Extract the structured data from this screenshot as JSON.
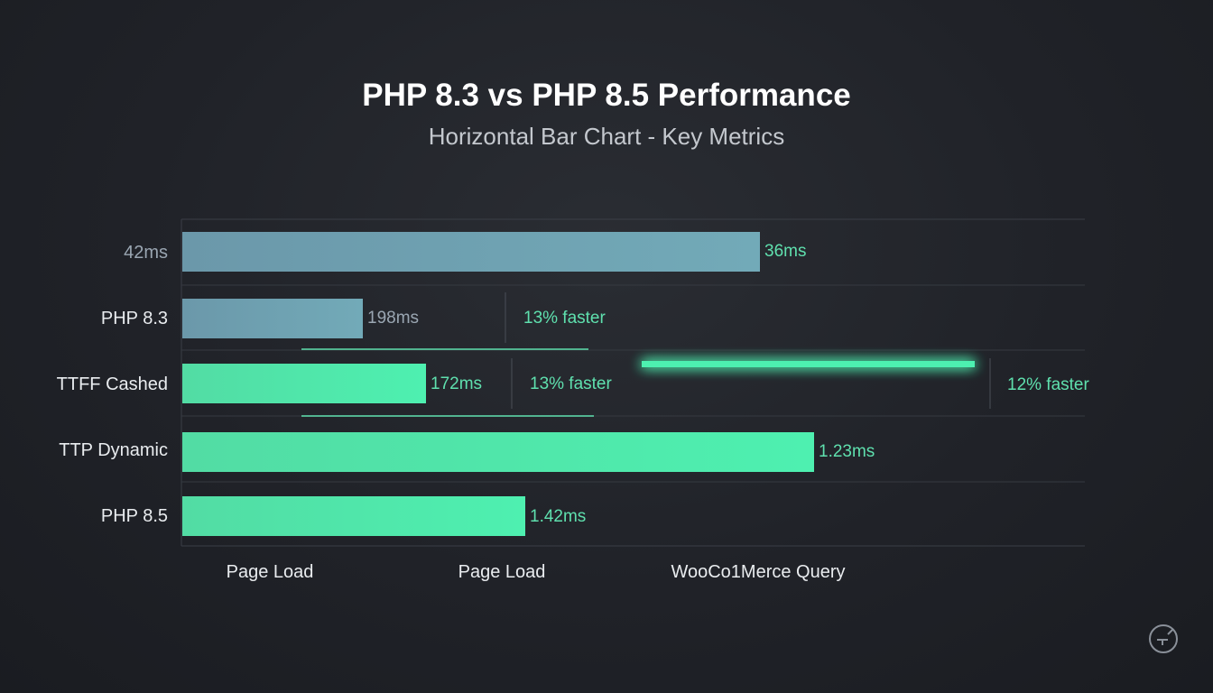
{
  "title": "PHP 8.3 vs PHP 8.5 Performance",
  "subtitle": "Horizontal Bar Chart - Key Metrics",
  "colors": {
    "background": "#202228",
    "bar_php83": "#6fa2b4",
    "bar_php85": "#4ee8aa",
    "accent_green": "#5fe0ae",
    "label_text": "#e9ecef",
    "muted_text": "#9aa6b2",
    "grid": "#3a3e46"
  },
  "chart_data": {
    "type": "bar",
    "orientation": "horizontal",
    "title": "PHP 8.3 vs PHP 8.5 Performance",
    "subtitle": "Horizontal Bar Chart - Key Metrics",
    "categories": [
      "42ms",
      "PHP 8.3",
      "TTFF Cashed",
      "TTP Dynamic",
      "PHP 8.5"
    ],
    "values": [
      64,
      20,
      27,
      70,
      38
    ],
    "value_labels": [
      "36ms",
      "198ms",
      "172ms",
      "1.23ms",
      "1.42ms"
    ],
    "bar_colors": [
      "#6fa2b4",
      "#6fa2b4",
      "#4ee8aa",
      "#4ee8aa",
      "#4ee8aa"
    ],
    "xlim": [
      0,
      100
    ],
    "annotations": [
      "13% faster",
      "13% faster",
      "12% faster"
    ],
    "x_group_labels": [
      "Page Load",
      "Page Load",
      "WooCo1Merce Query"
    ],
    "grid": true
  },
  "watermark_icon": "badge-logo-icon"
}
